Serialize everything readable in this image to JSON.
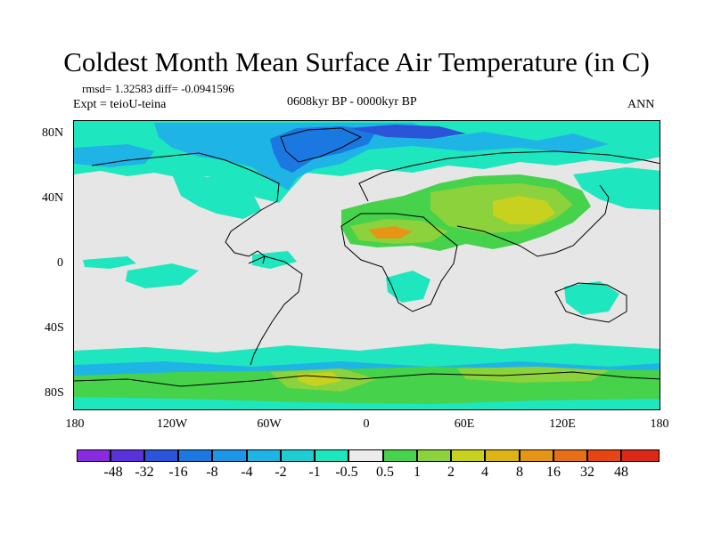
{
  "title": "Coldest Month Mean Surface Air Temperature (in C)",
  "stats": "rmsd= 1.32583 diff= -0.0941596",
  "experiment": "Expt = teioU-teina",
  "period": "0608kyr BP - 0000kyr BP",
  "season": "ANN",
  "lat_ticks": [
    "80N",
    "40N",
    "0",
    "40S",
    "80S"
  ],
  "lon_ticks": [
    "180",
    "120W",
    "60W",
    "0",
    "60E",
    "120E",
    "180"
  ],
  "colorbar": {
    "labels": [
      "-48",
      "-32",
      "-16",
      "-8",
      "-4",
      "-2",
      "-1",
      "-0.5",
      "0.5",
      "1",
      "2",
      "4",
      "8",
      "16",
      "32",
      "48"
    ],
    "colors": [
      "#8a2be2",
      "#5a32dc",
      "#2a55d8",
      "#1a78e0",
      "#1e96e6",
      "#1eb4e6",
      "#1ecdd2",
      "#1ee6be",
      "#ebebeb",
      "#46d24a",
      "#8cd23c",
      "#c8d21e",
      "#dcb414",
      "#e69614",
      "#e66e14",
      "#e64614",
      "#dc2814"
    ]
  },
  "map_colors": {
    "background": "#e6e6e6",
    "cool_light": "#1ee6be",
    "cool_mid": "#1eb4e6",
    "cool_strong": "#1a78e0",
    "cool_deep": "#2a55d8",
    "warm_light": "#46d24a",
    "warm_mid": "#8cd23c",
    "warm_strong": "#c8d21e",
    "warm_deep": "#dcb414",
    "hot": "#e69614",
    "coast": "#000000"
  }
}
